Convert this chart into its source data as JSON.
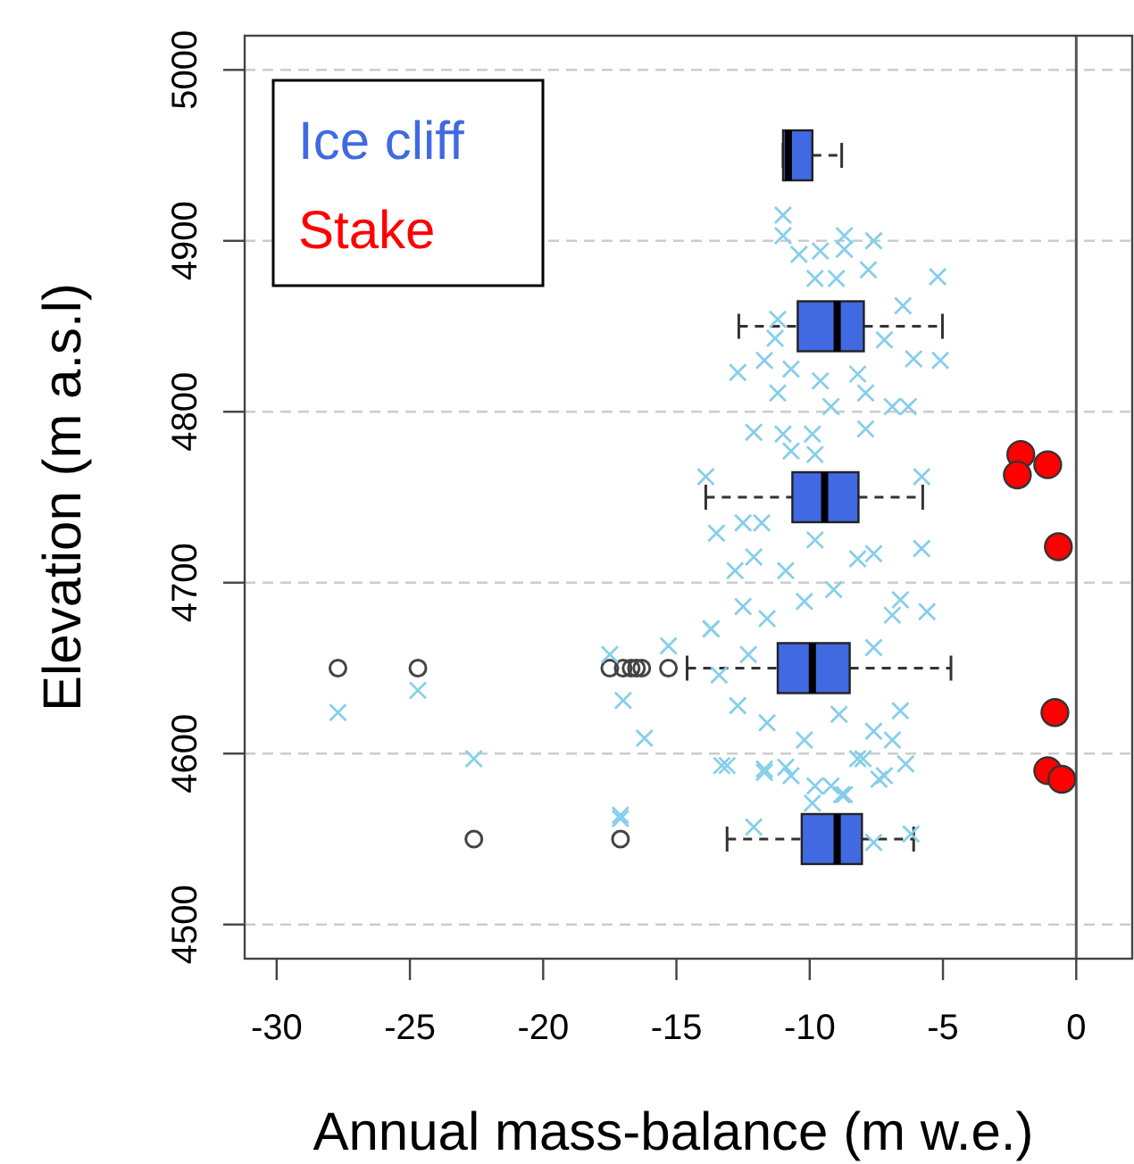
{
  "chart_data": {
    "type": "box",
    "orientation": "horizontal",
    "xlabel": "Annual mass-balance (m w.e.)",
    "ylabel": "Elevation (m a.s.l)",
    "xlim": [
      -31.2,
      2.1
    ],
    "xticks": [
      -30,
      -25,
      -20,
      -15,
      -10,
      -5,
      0
    ],
    "ylim": [
      4480,
      5020
    ],
    "yticks": [
      4500,
      4600,
      4700,
      4800,
      4900,
      5000
    ],
    "grid": "y",
    "legend": "top left",
    "ref_lines": [
      {
        "axis": "x",
        "value": 0,
        "color": "#555555",
        "line_style": "solid"
      }
    ],
    "series": [
      {
        "name": "Ice cliff",
        "color": "#4169e1",
        "x": [
          4550,
          4650,
          4750,
          4850,
          4950
        ],
        "boxes": [
          {
            "low": -13.1,
            "q1": -10.3,
            "median": -8.97,
            "q3": -8.04,
            "high": -6.1,
            "outliers": [
              -22.6,
              -17.1
            ]
          },
          {
            "low": -14.6,
            "q1": -11.2,
            "median": -9.9,
            "q3": -8.5,
            "high": -4.7,
            "outliers": [
              -27.7,
              -24.7,
              -17.5,
              -17.0,
              -16.7,
              -16.5,
              -16.3,
              -15.3
            ]
          },
          {
            "low": -13.9,
            "q1": -10.65,
            "median": -9.44,
            "q3": -8.17,
            "high": -5.76
          },
          {
            "low": -12.66,
            "q1": -10.45,
            "median": -8.97,
            "q3": -7.97,
            "high": -5.02
          },
          {
            "low": -11.0,
            "q1": -11.0,
            "median": -10.8,
            "q3": -9.9,
            "high": -8.8
          }
        ]
      },
      {
        "type": "scatter",
        "color": "#87ceeb",
        "marker": "cross",
        "x": [
          4915,
          4903,
          4903,
          4900,
          4892,
          4894,
          4895,
          4883,
          4878,
          4878,
          4879,
          4862,
          4854,
          4843,
          4842,
          4831,
          4830,
          4823,
          4830,
          4825,
          4818,
          4822,
          4811,
          4811,
          4803,
          4803,
          4803,
          4788,
          4787,
          4787,
          4790,
          4777,
          4775,
          4762,
          4762,
          4729,
          4720,
          4735,
          4735,
          4707,
          4715,
          4707,
          4725,
          4714,
          4717,
          4690,
          4683,
          4673,
          4686,
          4679,
          4689,
          4696,
          4681,
          4662,
          4658,
          4628,
          4618,
          4608,
          4623,
          4613,
          4625,
          4592,
          4581,
          4597,
          4587,
          4571,
          4576,
          4608,
          4624,
          4637,
          4597,
          4658,
          4631,
          4609,
          4564,
          4663,
          4673,
          4646,
          4593,
          4591,
          4562,
          4557,
          4553,
          4548,
          4593,
          4589,
          4587,
          4581,
          4576,
          4585,
          4594,
          4597
        ],
        "values": [
          -11.0,
          -11.0,
          -8.7,
          -7.6,
          -10.4,
          -9.6,
          -8.7,
          -7.8,
          -9.8,
          -9.0,
          -5.2,
          -6.5,
          -11.2,
          -11.3,
          -7.2,
          -6.1,
          -5.1,
          -12.7,
          -11.7,
          -10.7,
          -9.6,
          -8.2,
          -7.9,
          -11.2,
          -6.9,
          -6.3,
          -9.2,
          -12.1,
          -11.0,
          -9.9,
          -7.9,
          -10.7,
          -9.8,
          -13.9,
          -5.8,
          -13.5,
          -5.8,
          -12.5,
          -11.8,
          -12.8,
          -12.1,
          -10.9,
          -9.8,
          -8.2,
          -7.6,
          -6.6,
          -5.6,
          -13.7,
          -12.5,
          -11.6,
          -10.2,
          -9.1,
          -6.9,
          -7.6,
          -12.3,
          -12.7,
          -11.6,
          -10.2,
          -8.9,
          -7.6,
          -6.6,
          -10.9,
          -9.2,
          -8.2,
          -7.2,
          -9.9,
          -8.8,
          -6.9,
          -27.7,
          -24.7,
          -22.6,
          -17.5,
          -17.0,
          -16.2,
          -17.1,
          -15.3,
          -13.7,
          -13.4,
          -13.1,
          -11.7,
          -17.1,
          -12.1,
          -6.2,
          -7.6,
          -13.3,
          -11.7,
          -10.7,
          -9.8,
          -8.7,
          -7.4,
          -6.4,
          -8.0
        ]
      },
      {
        "type": "scatter",
        "name": "Stake",
        "color": "#ff0000",
        "marker": "circle",
        "x": [
          4775,
          4763,
          4769,
          4721,
          4624,
          4590,
          4585
        ],
        "values": [
          -2.08,
          -2.21,
          -1.07,
          -0.67,
          -0.8,
          -1.07,
          -0.54
        ]
      }
    ]
  }
}
